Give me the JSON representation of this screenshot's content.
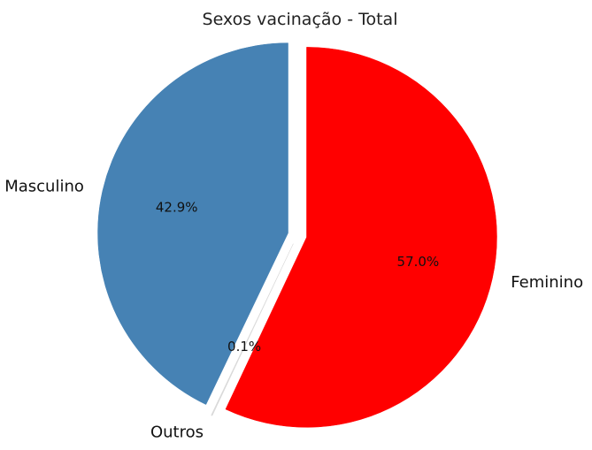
{
  "chart_data": {
    "type": "pie",
    "title": "Sexos vacinação - Total",
    "slices": [
      {
        "label": "Feminino",
        "value": 57.0,
        "pct_label": "57.0%",
        "color": "#ff0000",
        "exploded": true
      },
      {
        "label": "Outros",
        "value": 0.1,
        "pct_label": "0.1%",
        "color": "#d9d9d9",
        "exploded": true
      },
      {
        "label": "Masculino",
        "value": 42.9,
        "pct_label": "42.9%",
        "color": "#4682b4",
        "exploded": true
      }
    ],
    "start_angle_deg": 90,
    "direction": "clockwise"
  }
}
